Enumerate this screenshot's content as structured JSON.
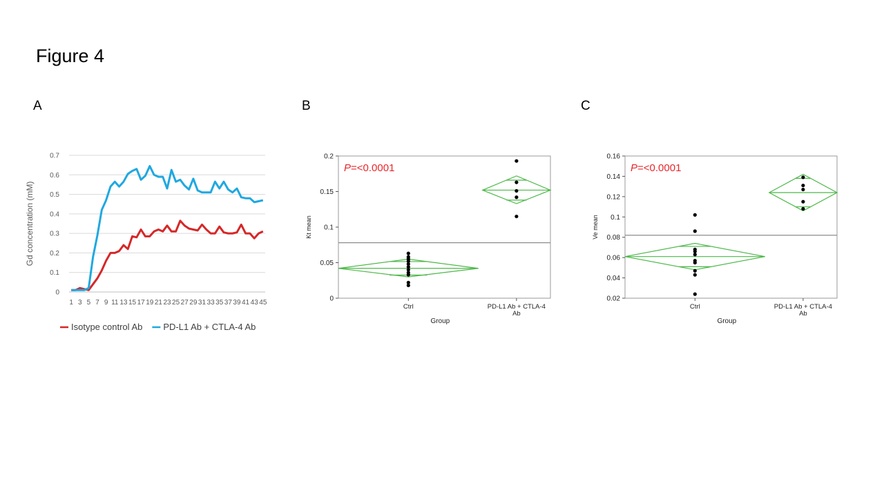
{
  "figure": {
    "title": "Figure 4",
    "panel_labels": [
      "A",
      "B",
      "C"
    ]
  },
  "colors": {
    "isotype": "#d62728",
    "treated": "#1fa8e0",
    "diamond": "#4cb848",
    "grid": "#d9d9d9",
    "axis_text": "#595959",
    "pvalue": "#e8262a",
    "refline": "#8c8c8c"
  },
  "chart_data": [
    {
      "type": "line",
      "panel": "A",
      "title": "",
      "xlabel": "",
      "ylabel": "Gd concentration (mM)",
      "ylim": [
        0,
        0.7
      ],
      "yticks": [
        "0",
        "0.1",
        "0.2",
        "0.3",
        "0.4",
        "0.5",
        "0.6",
        "0.7"
      ],
      "x": [
        1,
        2,
        3,
        4,
        5,
        6,
        7,
        8,
        9,
        10,
        11,
        12,
        13,
        14,
        15,
        16,
        17,
        18,
        19,
        20,
        21,
        22,
        23,
        24,
        25,
        26,
        27,
        28,
        29,
        30,
        31,
        32,
        33,
        34,
        35,
        36,
        37,
        38,
        39,
        40,
        41,
        42,
        43,
        44,
        45
      ],
      "xtick_labels": [
        "1",
        "3",
        "5",
        "7",
        "9",
        "11",
        "13",
        "15",
        "17",
        "19",
        "21",
        "23",
        "25",
        "27",
        "29",
        "31",
        "33",
        "35",
        "37",
        "39",
        "41",
        "43",
        "45"
      ],
      "grid": true,
      "legend_position": "bottom",
      "series": [
        {
          "name": "Isotype control Ab",
          "color_key": "isotype",
          "values": [
            0.01,
            0.01,
            0.02,
            0.015,
            0.01,
            0.04,
            0.07,
            0.11,
            0.16,
            0.2,
            0.2,
            0.21,
            0.24,
            0.22,
            0.285,
            0.28,
            0.32,
            0.285,
            0.285,
            0.31,
            0.32,
            0.31,
            0.34,
            0.31,
            0.31,
            0.365,
            0.34,
            0.325,
            0.32,
            0.315,
            0.345,
            0.32,
            0.3,
            0.3,
            0.335,
            0.305,
            0.3,
            0.3,
            0.305,
            0.345,
            0.3,
            0.3,
            0.275,
            0.3,
            0.31
          ]
        },
        {
          "name": "PD-L1 Ab + CTLA-4 Ab",
          "color_key": "treated",
          "values": [
            0.01,
            0.01,
            0.01,
            0.01,
            0.02,
            0.18,
            0.29,
            0.42,
            0.47,
            0.54,
            0.565,
            0.54,
            0.565,
            0.605,
            0.62,
            0.63,
            0.575,
            0.595,
            0.645,
            0.6,
            0.59,
            0.59,
            0.53,
            0.625,
            0.565,
            0.575,
            0.545,
            0.525,
            0.58,
            0.52,
            0.51,
            0.51,
            0.51,
            0.565,
            0.53,
            0.565,
            0.525,
            0.51,
            0.53,
            0.485,
            0.48,
            0.48,
            0.46,
            0.465,
            0.47
          ]
        }
      ]
    },
    {
      "type": "scatter",
      "panel": "B",
      "xlabel": "Group",
      "ylabel": "Kt mean",
      "ylim": [
        0,
        0.2
      ],
      "yticks": [
        "0",
        "0.05",
        "0.1",
        "0.15",
        "0.2"
      ],
      "categories": [
        "Ctrl",
        "PD-L1 Ab + CTLA-4 Ab"
      ],
      "category_label_lines": [
        [
          "Ctrl"
        ],
        [
          "PD-L1 Ab + CTLA-4",
          "Ab"
        ]
      ],
      "grand_mean": 0.078,
      "pvalue": {
        "letter": "P",
        "text": "=<0.0001"
      },
      "groups": [
        {
          "name": "Ctrl",
          "points": [
            0.063,
            0.058,
            0.055,
            0.052,
            0.048,
            0.044,
            0.04,
            0.036,
            0.033,
            0.022,
            0.018
          ],
          "mean": 0.042,
          "ci": [
            0.03,
            0.055
          ],
          "overlap": [
            0.0325,
            0.0515
          ],
          "diamond_width_frac": 1.0
        },
        {
          "name": "PD-L1 Ab + CTLA-4 Ab",
          "points": [
            0.193,
            0.163,
            0.151,
            0.142,
            0.115
          ],
          "mean": 0.152,
          "ci": [
            0.133,
            0.172
          ],
          "overlap": [
            0.138,
            0.166
          ],
          "diamond_width_frac": 0.45
        }
      ]
    },
    {
      "type": "scatter",
      "panel": "C",
      "xlabel": "Group",
      "ylabel": "Ve mean",
      "ylim": [
        0.02,
        0.16
      ],
      "yticks": [
        "0.02",
        "0.04",
        "0.06",
        "0.08",
        "0.1",
        "0.12",
        "0.14",
        "0.16"
      ],
      "categories": [
        "Ctrl",
        "PD-L1 Ab + CTLA-4 Ab"
      ],
      "category_label_lines": [
        [
          "Ctrl"
        ],
        [
          "PD-L1 Ab + CTLA-4",
          "Ab"
        ]
      ],
      "grand_mean": 0.082,
      "pvalue": {
        "letter": "P",
        "text": "=<0.0001"
      },
      "groups": [
        {
          "name": "Ctrl",
          "points": [
            0.102,
            0.086,
            0.068,
            0.066,
            0.063,
            0.057,
            0.055,
            0.047,
            0.043,
            0.024
          ],
          "mean": 0.061,
          "ci": [
            0.048,
            0.074
          ],
          "overlap": [
            0.051,
            0.071
          ],
          "diamond_width_frac": 1.0
        },
        {
          "name": "PD-L1 Ab + CTLA-4 Ab",
          "points": [
            0.139,
            0.131,
            0.127,
            0.115,
            0.108
          ],
          "mean": 0.124,
          "ci": [
            0.106,
            0.142
          ],
          "overlap": [
            0.11,
            0.138
          ],
          "diamond_width_frac": 0.45
        }
      ]
    }
  ]
}
